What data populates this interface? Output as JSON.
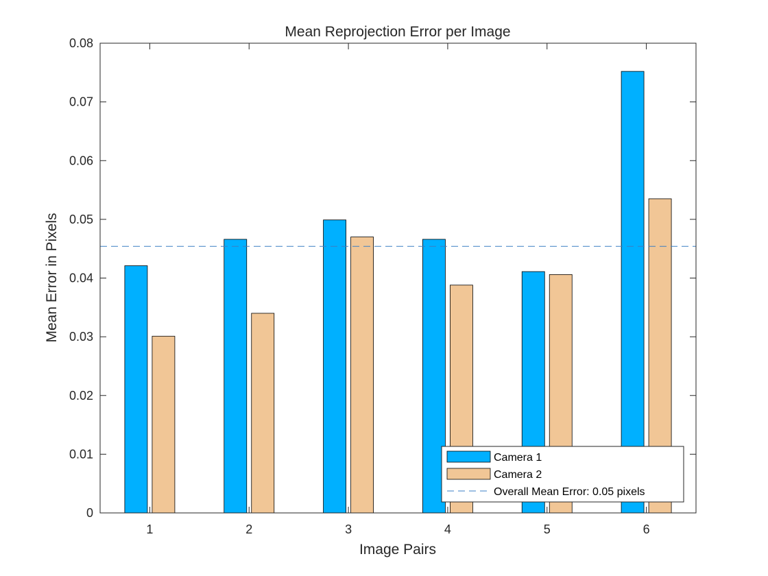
{
  "chart_data": {
    "type": "bar",
    "title": "Mean Reprojection Error per Image",
    "xlabel": "Image Pairs",
    "ylabel": "Mean Error in Pixels",
    "categories": [
      "1",
      "2",
      "3",
      "4",
      "5",
      "6"
    ],
    "series": [
      {
        "name": "Camera 1",
        "color": "#00b0ff",
        "values": [
          0.0421,
          0.0466,
          0.0499,
          0.0466,
          0.0411,
          0.0752
        ]
      },
      {
        "name": "Camera 2",
        "color": "#f1c696",
        "values": [
          0.0301,
          0.034,
          0.047,
          0.0388,
          0.0406,
          0.0535
        ]
      }
    ],
    "reference_line": {
      "label": "Overall Mean Error: 0.05 pixels",
      "value": 0.0454,
      "color": "#3a7fc4",
      "style": "dashed"
    },
    "ylim": [
      0,
      0.08
    ],
    "yticks": [
      "0",
      "0.01",
      "0.02",
      "0.03",
      "0.04",
      "0.05",
      "0.06",
      "0.07",
      "0.08"
    ],
    "grid": false,
    "legend_position": "bottom-right"
  }
}
